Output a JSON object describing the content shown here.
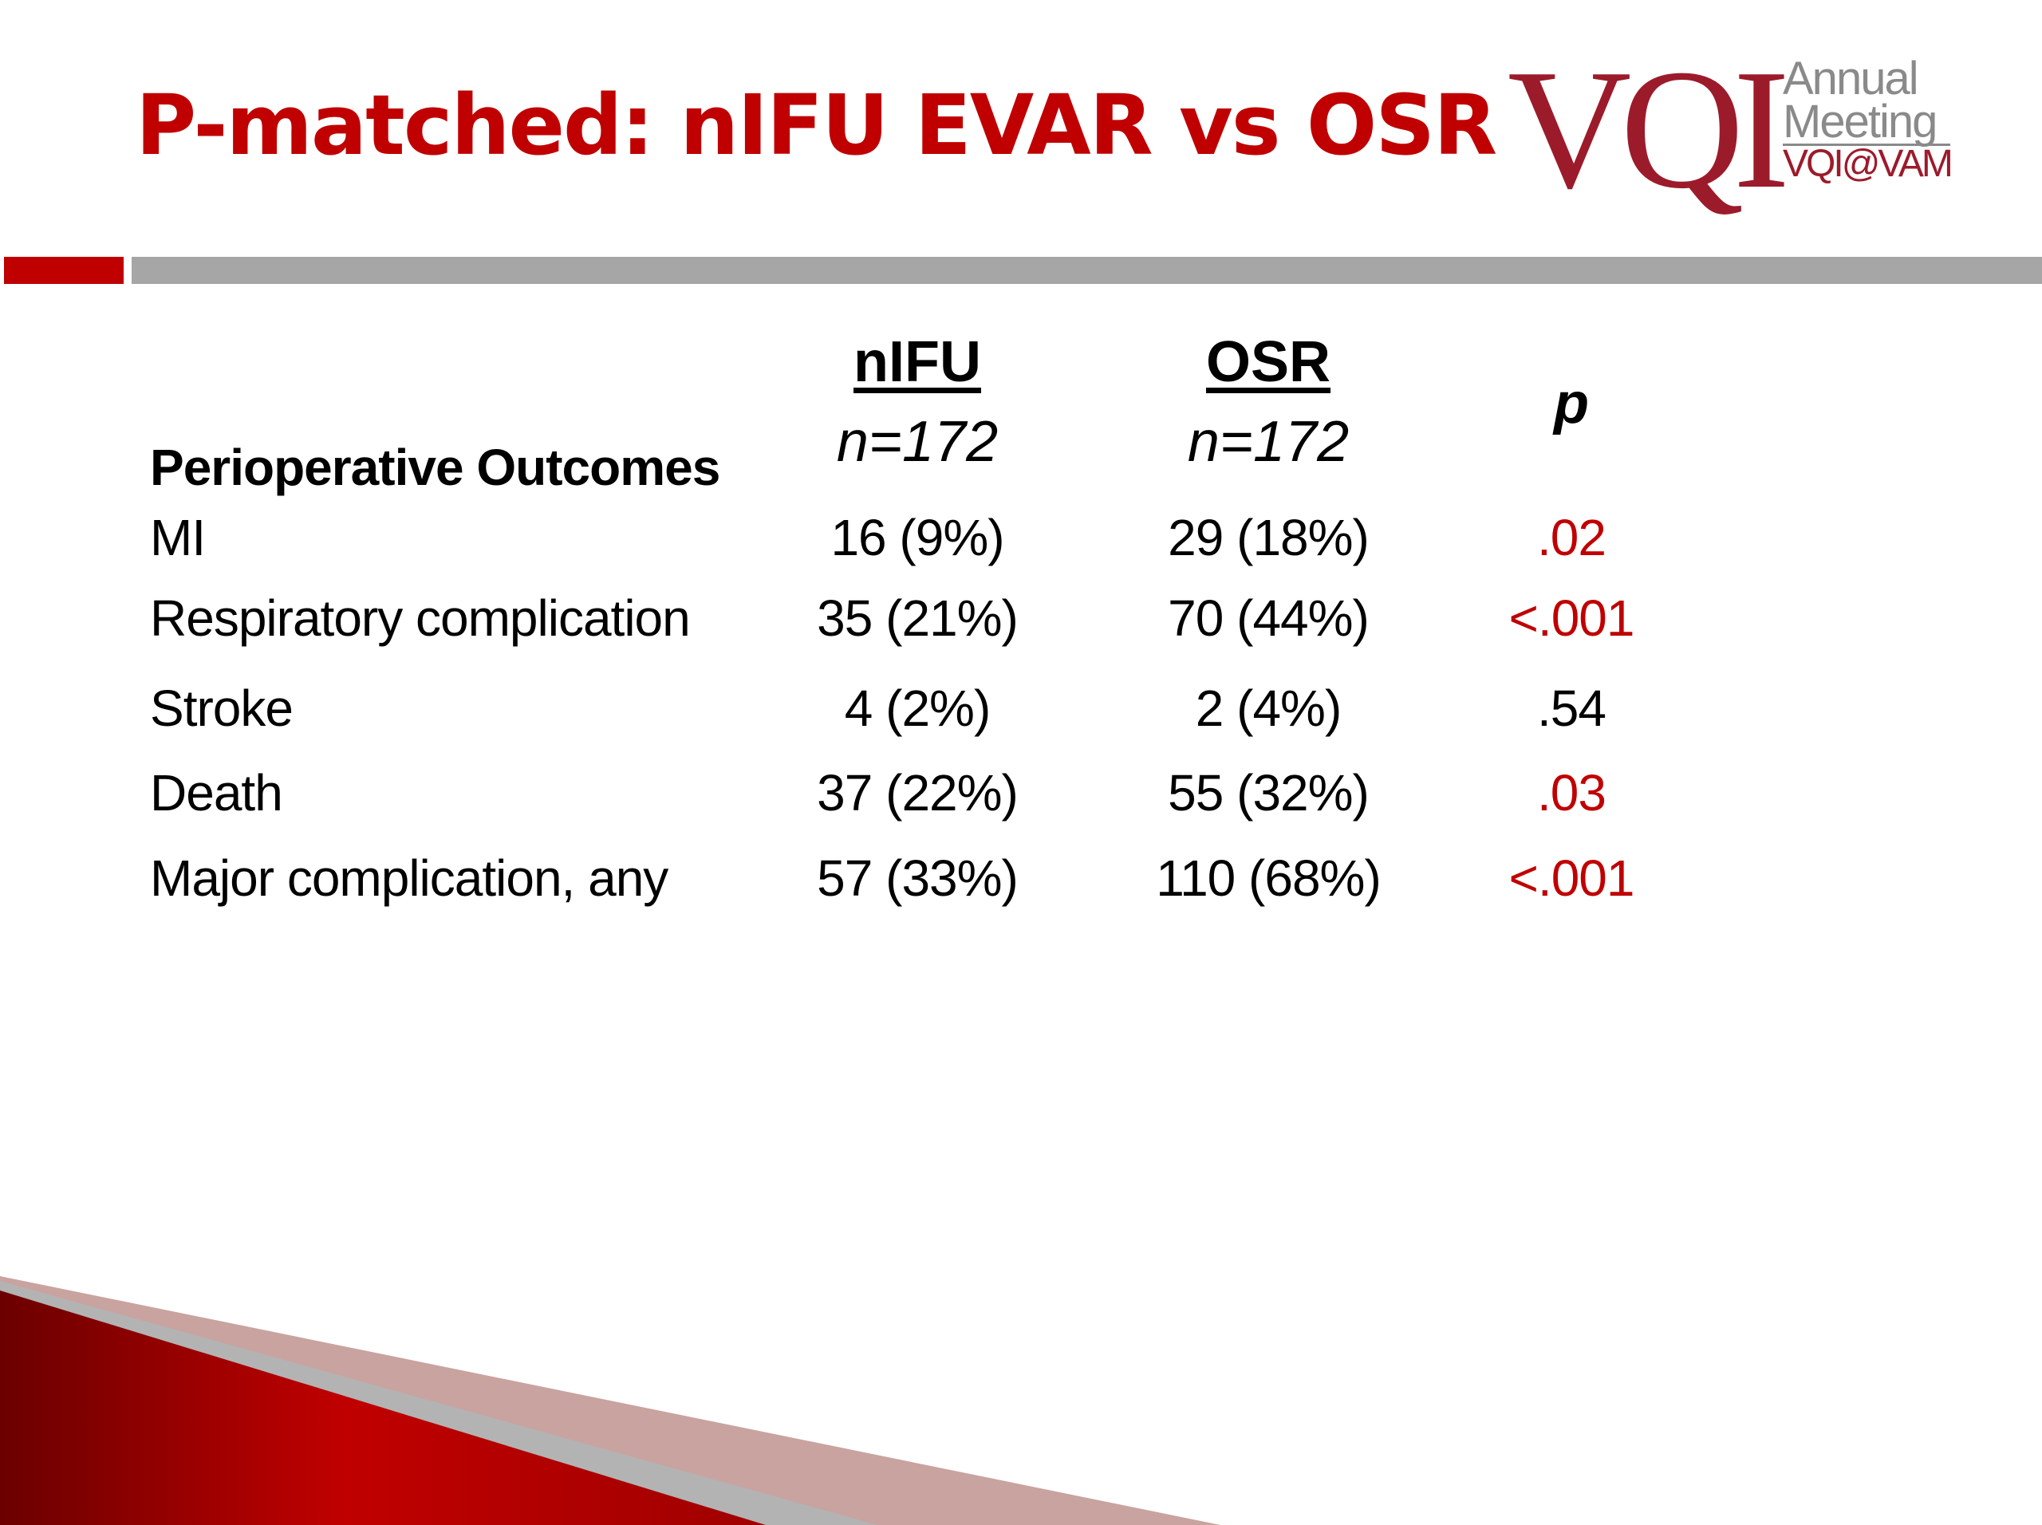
{
  "slide": {
    "title": "P-matched: nIFU EVAR vs OSR"
  },
  "logo": {
    "mark": "VQI",
    "line1": "Annual",
    "line2": "Meeting",
    "line3": "VQI@VAM"
  },
  "table": {
    "columns": [
      {
        "name": "nIFU",
        "n": "n=172"
      },
      {
        "name": "OSR",
        "n": "n=172"
      }
    ],
    "p_header": "p",
    "section_label": "Perioperative Outcomes",
    "rows": [
      {
        "label": "MI",
        "nifu": "16 (9%)",
        "osr": "29 (18%)",
        "p": ".02",
        "significant": true
      },
      {
        "label": "Respiratory complication",
        "nifu": "35 (21%)",
        "osr": "70 (44%)",
        "p": "<.001",
        "significant": true
      },
      {
        "label": "Stroke",
        "nifu": "4 (2%)",
        "osr": "2 (4%)",
        "p": ".54",
        "significant": false
      },
      {
        "label": "Death",
        "nifu": "37 (22%)",
        "osr": "55 (32%)",
        "p": ".03",
        "significant": true
      },
      {
        "label": "Major complication, any",
        "nifu": "57 (33%)",
        "osr": "110 (68%)",
        "p": "<.001",
        "significant": true
      }
    ]
  },
  "colors": {
    "accent": "#c00000",
    "logo_red": "#9c1b2b",
    "rule_gray": "#a6a6a6"
  }
}
